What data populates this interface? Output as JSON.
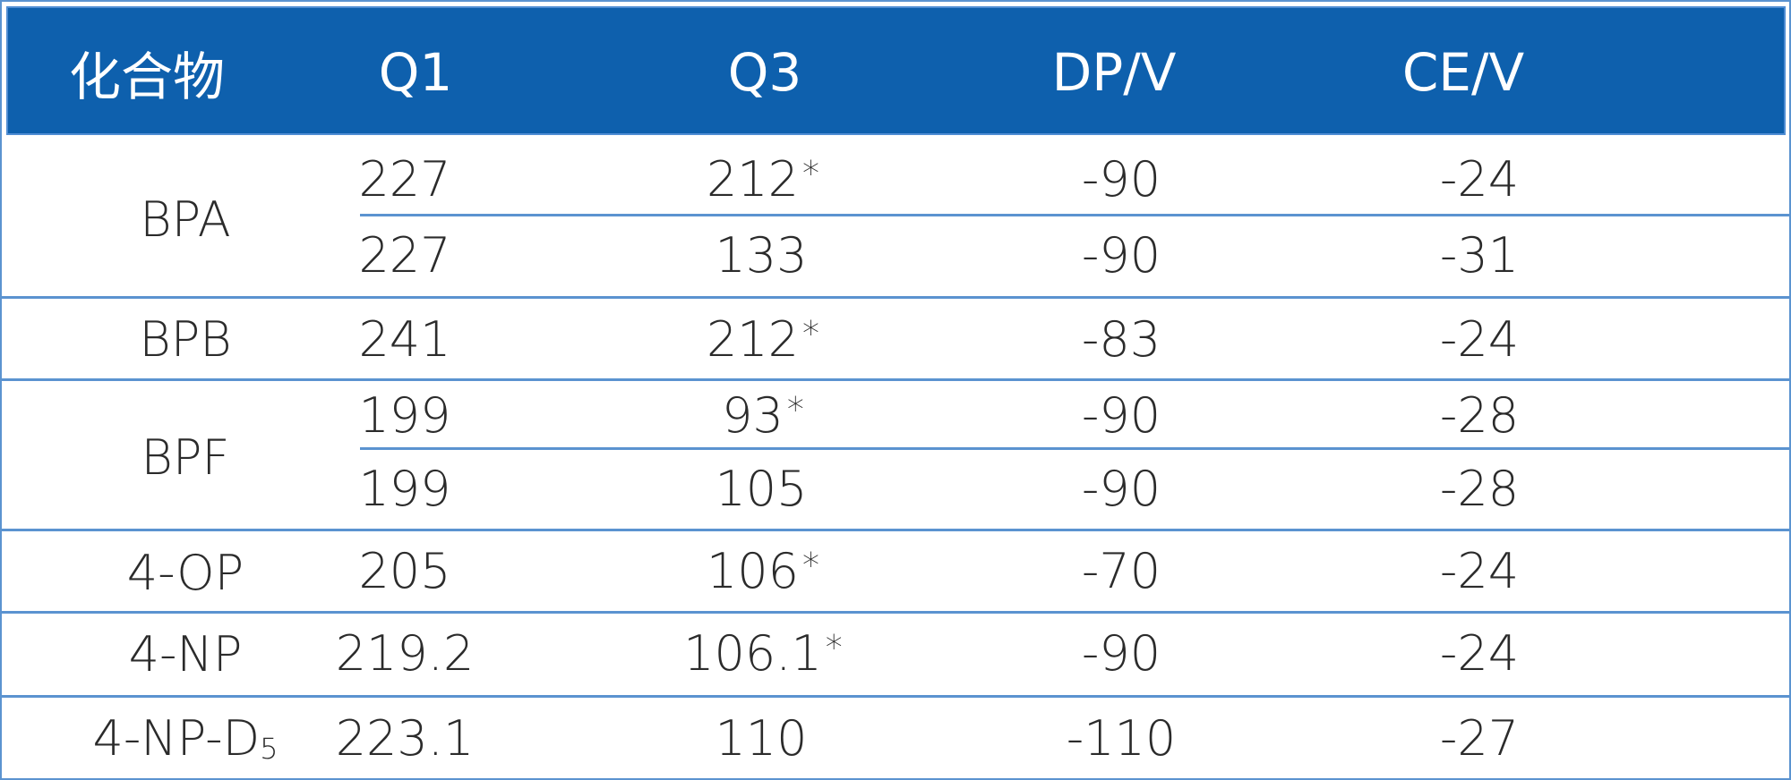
{
  "table": {
    "headers": [
      "化合物",
      "Q1",
      "Q3",
      "DP/V",
      "CE/V"
    ],
    "compounds": [
      {
        "name": "BPA",
        "sub": ""
      },
      {
        "name": "BPB",
        "sub": ""
      },
      {
        "name": "BPF",
        "sub": ""
      },
      {
        "name": "4-OP",
        "sub": ""
      },
      {
        "name": "4-NP",
        "sub": ""
      },
      {
        "name": "4-NP-D",
        "sub": "5"
      }
    ],
    "rows": [
      {
        "q1": "227",
        "q3": "212",
        "q3_mark": "*",
        "dp": "-90",
        "ce": "-24"
      },
      {
        "q1": "227",
        "q3": "133",
        "q3_mark": "",
        "dp": "-90",
        "ce": "-31"
      },
      {
        "q1": "241",
        "q3": "212",
        "q3_mark": "*",
        "dp": "-83",
        "ce": "-24"
      },
      {
        "q1": "199",
        "q3": "93",
        "q3_mark": "*",
        "dp": "-90",
        "ce": "-28"
      },
      {
        "q1": "199",
        "q3": "105",
        "q3_mark": "",
        "dp": "-90",
        "ce": "-28"
      },
      {
        "q1": "205",
        "q3": "106",
        "q3_mark": "*",
        "dp": "-70",
        "ce": "-24"
      },
      {
        "q1": "219.2",
        "q3": "106.1",
        "q3_mark": "*",
        "dp": "-90",
        "ce": "-24"
      },
      {
        "q1": "223.1",
        "q3": "110",
        "q3_mark": "",
        "dp": "-110",
        "ce": "-27"
      }
    ],
    "colors": {
      "header_bg": "#0e60ad",
      "header_text": "#ffffff",
      "rule": "#5b93d0",
      "body_text": "#2b2b2b"
    }
  }
}
